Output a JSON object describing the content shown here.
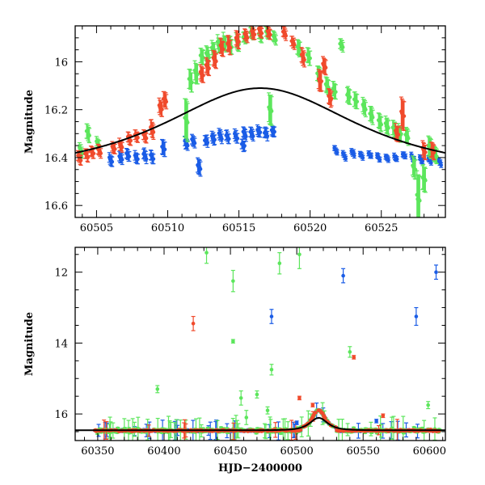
{
  "colors": {
    "blue": "#1a5ce6",
    "green": "#5ce65c",
    "red": "#f04a2c",
    "model": "#000000"
  },
  "chart_data": [
    {
      "type": "scatter",
      "ylabel": "Magnitude",
      "xlabel": "",
      "xlim": [
        60503.5,
        60529.5
      ],
      "ylim": [
        16.65,
        15.85
      ],
      "y_inverted": true,
      "xticks": [
        60505,
        60510,
        60515,
        60520,
        60525
      ],
      "xtick_labels": [
        "60505",
        "60510",
        "60515",
        "60520",
        "60525"
      ],
      "yticks": [
        16,
        16.2,
        16.4,
        16.6
      ],
      "ytick_labels": [
        "16",
        "16.2",
        "16.4",
        "16.6"
      ],
      "grid": false,
      "series": [
        {
          "color": "blue",
          "points": [
            [
              60506.0,
              16.41,
              0.02
            ],
            [
              60506.7,
              16.4,
              0.02
            ],
            [
              60507.2,
              16.39,
              0.02
            ],
            [
              60507.8,
              16.4,
              0.02
            ],
            [
              60508.4,
              16.39,
              0.02
            ],
            [
              60508.9,
              16.4,
              0.02
            ],
            [
              60509.7,
              16.36,
              0.03
            ],
            [
              60511.3,
              16.34,
              0.02
            ],
            [
              60511.8,
              16.33,
              0.02
            ],
            [
              60512.2,
              16.44,
              0.03
            ],
            [
              60512.7,
              16.33,
              0.02
            ],
            [
              60513.2,
              16.32,
              0.02
            ],
            [
              60513.7,
              16.31,
              0.02
            ],
            [
              60514.2,
              16.31,
              0.02
            ],
            [
              60514.8,
              16.31,
              0.02
            ],
            [
              60515.3,
              16.35,
              0.02
            ],
            [
              60515.4,
              16.3,
              0.02
            ],
            [
              60515.9,
              16.3,
              0.02
            ],
            [
              60516.4,
              16.29,
              0.02
            ],
            [
              60516.9,
              16.3,
              0.02
            ],
            [
              60517.4,
              16.29,
              0.02
            ],
            [
              60521.8,
              16.37,
              0.01
            ],
            [
              60522.4,
              16.39,
              0.01
            ],
            [
              60523.0,
              16.38,
              0.01
            ],
            [
              60523.6,
              16.39,
              0.01
            ],
            [
              60524.2,
              16.39,
              0.01
            ],
            [
              60524.8,
              16.4,
              0.01
            ],
            [
              60525.4,
              16.4,
              0.01
            ],
            [
              60526.0,
              16.4,
              0.01
            ],
            [
              60526.6,
              16.39,
              0.01
            ],
            [
              60527.2,
              16.4,
              0.01
            ],
            [
              60527.8,
              16.41,
              0.01
            ],
            [
              60528.4,
              16.41,
              0.01
            ],
            [
              60529.1,
              16.42,
              0.01
            ]
          ]
        },
        {
          "color": "green",
          "points": [
            [
              60503.9,
              16.37,
              0.02
            ],
            [
              60504.4,
              16.3,
              0.03
            ],
            [
              60505.1,
              16.34,
              0.02
            ],
            [
              60511.3,
              16.24,
              0.08
            ],
            [
              60511.6,
              16.08,
              0.04
            ],
            [
              60512.0,
              16.05,
              0.04
            ],
            [
              60512.4,
              15.98,
              0.03
            ],
            [
              60512.8,
              15.97,
              0.03
            ],
            [
              60513.2,
              15.95,
              0.03
            ],
            [
              60513.6,
              15.93,
              0.03
            ],
            [
              60514.0,
              15.92,
              0.03
            ],
            [
              60514.4,
              15.93,
              0.03
            ],
            [
              60514.9,
              15.92,
              0.03
            ],
            [
              60515.4,
              15.9,
              0.02
            ],
            [
              60515.9,
              15.88,
              0.02
            ],
            [
              60516.5,
              15.89,
              0.02
            ],
            [
              60517.0,
              15.88,
              0.02
            ],
            [
              60517.5,
              15.9,
              0.02
            ],
            [
              60517.2,
              16.2,
              0.06
            ],
            [
              60519.2,
              15.94,
              0.03
            ],
            [
              60519.9,
              15.98,
              0.03
            ],
            [
              60520.6,
              16.05,
              0.03
            ],
            [
              60521.2,
              16.1,
              0.03
            ],
            [
              60521.7,
              16.12,
              0.03
            ],
            [
              60522.2,
              15.93,
              0.02
            ],
            [
              60522.7,
              16.14,
              0.03
            ],
            [
              60523.2,
              16.16,
              0.03
            ],
            [
              60523.8,
              16.19,
              0.03
            ],
            [
              60524.3,
              16.22,
              0.03
            ],
            [
              60524.9,
              16.25,
              0.03
            ],
            [
              60525.4,
              16.27,
              0.03
            ],
            [
              60525.9,
              16.28,
              0.03
            ],
            [
              60526.3,
              16.3,
              0.03
            ],
            [
              60526.8,
              16.31,
              0.03
            ],
            [
              60527.3,
              16.44,
              0.04
            ],
            [
              60527.6,
              16.57,
              0.1
            ],
            [
              60528.0,
              16.49,
              0.05
            ],
            [
              60528.4,
              16.36,
              0.04
            ],
            [
              60528.8,
              16.39,
              0.03
            ]
          ]
        },
        {
          "color": "red",
          "points": [
            [
              60503.8,
              16.4,
              0.02
            ],
            [
              60504.3,
              16.39,
              0.02
            ],
            [
              60504.7,
              16.38,
              0.02
            ],
            [
              60505.2,
              16.37,
              0.02
            ],
            [
              60506.2,
              16.36,
              0.02
            ],
            [
              60506.7,
              16.35,
              0.02
            ],
            [
              60507.3,
              16.32,
              0.02
            ],
            [
              60507.8,
              16.31,
              0.02
            ],
            [
              60508.4,
              16.31,
              0.02
            ],
            [
              60508.9,
              16.28,
              0.03
            ],
            [
              60509.5,
              16.19,
              0.03
            ],
            [
              60509.8,
              16.16,
              0.03
            ],
            [
              60512.4,
              16.05,
              0.03
            ],
            [
              60512.8,
              16.02,
              0.03
            ],
            [
              60513.3,
              15.99,
              0.03
            ],
            [
              60513.8,
              15.94,
              0.03
            ],
            [
              60514.3,
              15.93,
              0.03
            ],
            [
              60514.9,
              15.91,
              0.03
            ],
            [
              60515.5,
              15.89,
              0.02
            ],
            [
              60516.0,
              15.88,
              0.02
            ],
            [
              60516.5,
              15.87,
              0.02
            ],
            [
              60517.1,
              15.88,
              0.02
            ],
            [
              60518.2,
              15.88,
              0.02
            ],
            [
              60518.8,
              15.92,
              0.02
            ],
            [
              60519.5,
              15.98,
              0.03
            ],
            [
              60520.7,
              16.08,
              0.04
            ],
            [
              60521.0,
              16.02,
              0.03
            ],
            [
              60521.4,
              16.15,
              0.03
            ],
            [
              60526.1,
              16.3,
              0.03
            ],
            [
              60526.5,
              16.22,
              0.06
            ],
            [
              60528.0,
              16.37,
              0.03
            ],
            [
              60528.6,
              16.37,
              0.03
            ]
          ]
        }
      ],
      "model_curve": {
        "color": "model",
        "baseline": 16.46,
        "peak_time": 60516.5,
        "peak_mag": 16.11
      }
    },
    {
      "type": "scatter",
      "ylabel": "Magnitude",
      "xlabel": "HJD−2400000",
      "xlim": [
        60333,
        60612
      ],
      "ylim": [
        16.75,
        11.3
      ],
      "y_inverted": true,
      "xticks": [
        60350,
        60400,
        60450,
        60500,
        60550,
        60600
      ],
      "xtick_labels": [
        "60350",
        "60400",
        "60450",
        "60500",
        "60550",
        "60600"
      ],
      "yticks": [
        12,
        14,
        16
      ],
      "ytick_labels": [
        "12",
        "14",
        "16"
      ],
      "grid": false,
      "outliers": {
        "blue": [
          [
            60481,
            13.25,
            0.2
          ],
          [
            60535,
            12.1,
            0.2
          ],
          [
            60590,
            13.25,
            0.25
          ],
          [
            60605,
            12.0,
            0.2
          ],
          [
            60560,
            16.2,
            0.05
          ],
          [
            60500,
            16.25,
            0.05
          ]
        ],
        "green": [
          [
            60432,
            11.45,
            0.3
          ],
          [
            60487,
            11.75,
            0.3
          ],
          [
            60502,
            11.5,
            0.4
          ],
          [
            60452,
            12.25,
            0.3
          ],
          [
            60540,
            14.25,
            0.15
          ],
          [
            60452,
            13.95,
            0.05
          ],
          [
            60481,
            14.75,
            0.15
          ],
          [
            60395,
            15.3,
            0.1
          ],
          [
            60458,
            15.55,
            0.2
          ],
          [
            60470,
            15.45,
            0.1
          ],
          [
            60599,
            15.75,
            0.1
          ],
          [
            60462,
            16.1,
            0.2
          ],
          [
            60478,
            15.9,
            0.1
          ]
        ],
        "red": [
          [
            60422,
            13.45,
            0.2
          ],
          [
            60543,
            14.4,
            0.05
          ],
          [
            60502,
            15.55,
            0.05
          ],
          [
            60512,
            15.75,
            0.05
          ],
          [
            60565,
            16.05,
            0.05
          ]
        ]
      }
    }
  ]
}
